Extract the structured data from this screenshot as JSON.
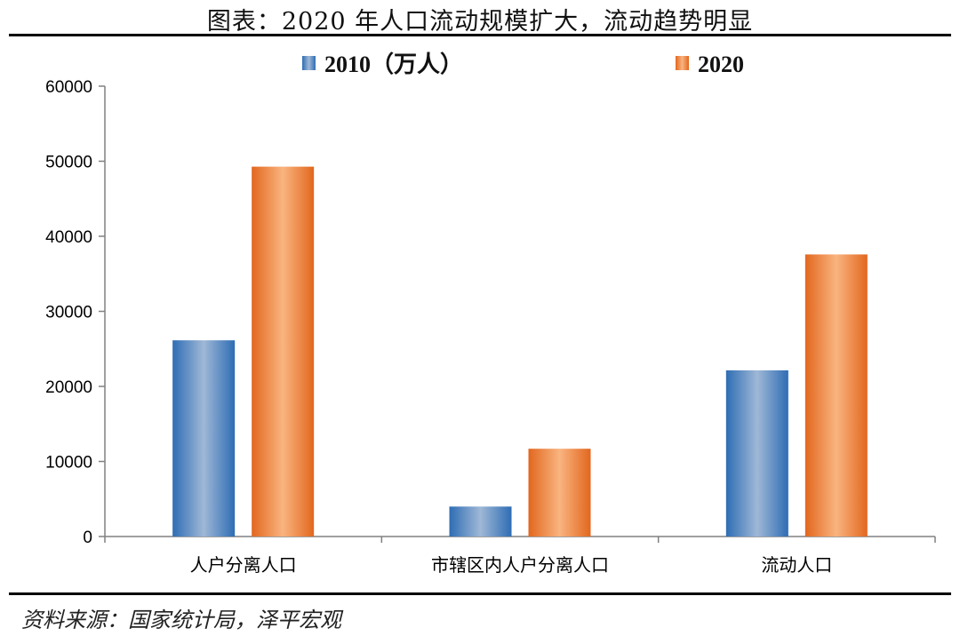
{
  "header": {
    "title": "图表：2020 年人口流动规模扩大，流动趋势明显"
  },
  "footer": {
    "source": "资料来源：国家统计局，泽平宏观"
  },
  "chart_data": {
    "type": "bar",
    "categories": [
      "人户分离人口",
      "市辖区内人户分离人口",
      "流动人口"
    ],
    "series": [
      {
        "name": "2010（万人）",
        "values": [
          26139,
          3991,
          22143
        ],
        "color": "#4a86c8"
      },
      {
        "name": "2020",
        "values": [
          49276,
          11694,
          37582
        ],
        "color": "#ed7d31"
      }
    ],
    "ylim": [
      0,
      60000
    ],
    "yticks": [
      0,
      10000,
      20000,
      30000,
      40000,
      50000,
      60000
    ],
    "legend": "top-center",
    "grid": false
  }
}
